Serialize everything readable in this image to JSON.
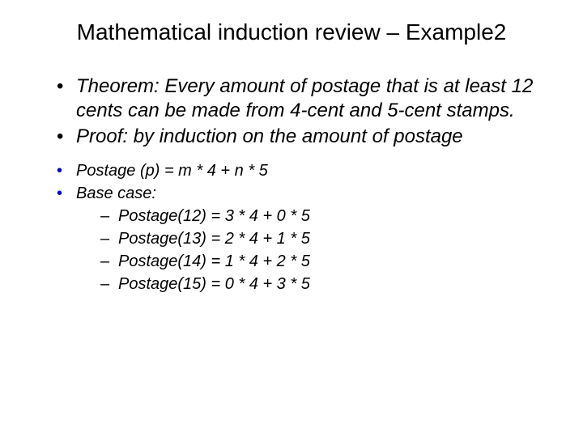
{
  "title": "Mathematical induction review – Example2",
  "block_a": {
    "fontsize_pt": 24,
    "font_style": "italic",
    "bullet_color": "#000000",
    "items": [
      "Theorem: Every amount of postage that is at least 12 cents can be made from 4-cent and 5-cent stamps.",
      "Proof: by induction on the amount of postage"
    ]
  },
  "block_b": {
    "fontsize_pt": 20,
    "font_style": "italic",
    "bullet_color": "#0000cc",
    "items": [
      {
        "text": "Postage (p) = m * 4 + n * 5"
      },
      {
        "text": "Base case:",
        "sub": [
          "Postage(12) = 3 * 4 + 0 * 5",
          "Postage(13) = 2 * 4 + 1 * 5",
          "Postage(14) = 1 * 4 + 2 * 5",
          "Postage(15) = 0 * 4 + 3 * 5"
        ]
      }
    ]
  },
  "colors": {
    "background": "#ffffff",
    "text": "#000000",
    "accent_bullet": "#0000cc"
  },
  "font_family": "Arial"
}
